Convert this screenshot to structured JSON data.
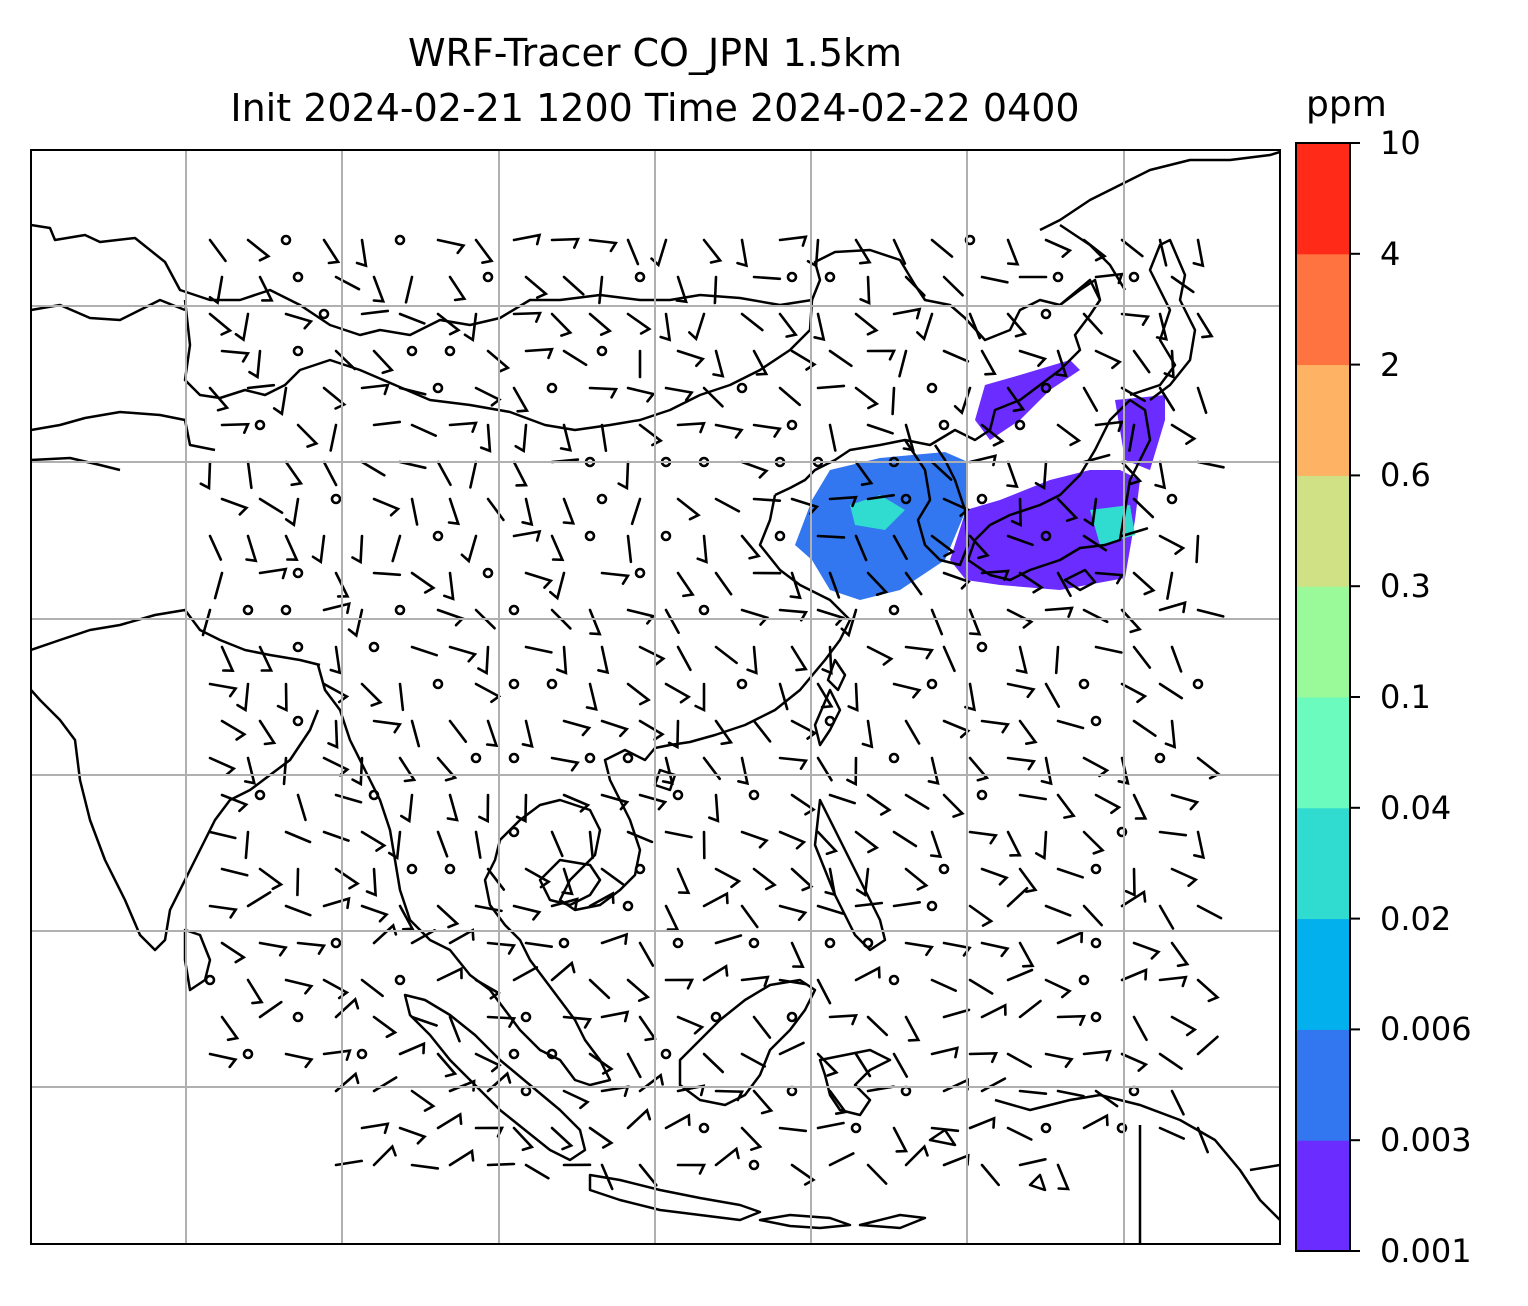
{
  "title": {
    "line1": "WRF-Tracer CO_JPN 1.5km",
    "line2": "Init 2024-02-21 1200 Time 2024-02-22 0400"
  },
  "colorbar": {
    "unit": "ppm",
    "levels": [
      "0.001",
      "0.003",
      "0.006",
      "0.02",
      "0.04",
      "0.1",
      "0.3",
      "0.6",
      "2",
      "4",
      "10"
    ],
    "colors": [
      "#6a2cff",
      "#3276f0",
      "#02b0ee",
      "#30dcd0",
      "#6bfbbf",
      "#9afa9a",
      "#d0e084",
      "#fdb264",
      "#ff7340",
      "#ff2a18"
    ]
  },
  "plume": {
    "main_colors": [
      "#6a2cff",
      "#3276f0"
    ],
    "highlight_colors": [
      "#02b0ee",
      "#30dcd0"
    ]
  },
  "gridlines": {
    "lon_count": 7,
    "lat_count": 6,
    "color": "#b0b0b0"
  }
}
